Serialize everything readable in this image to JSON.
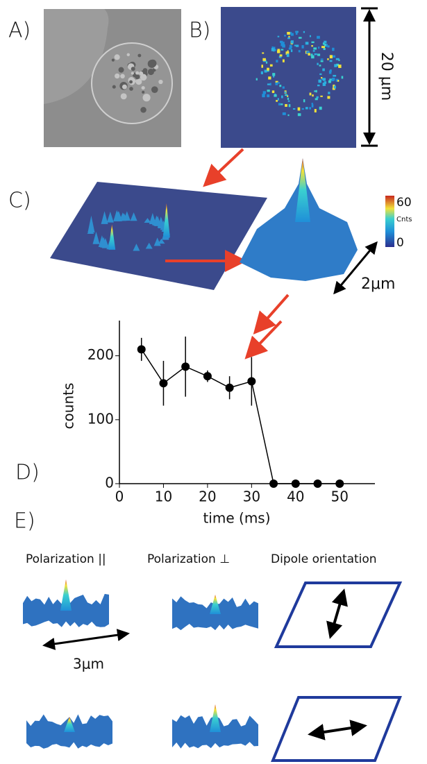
{
  "panel_labels": [
    "A)",
    "B)",
    "C)",
    "D)",
    "E)"
  ],
  "scale_bars": {
    "b": "20 μm",
    "c": "2μm",
    "e": "3μm"
  },
  "colorbar": {
    "max": 60,
    "min": 0,
    "unit": "Cnts"
  },
  "columns": [
    "Polarization ||",
    "Polarization ⊥",
    "Dipole orientation"
  ],
  "chart_data": {
    "type": "line",
    "xlabel": "time (ms)",
    "ylabel": "counts",
    "x": [
      5,
      10,
      15,
      20,
      25,
      30,
      35,
      40,
      45,
      50
    ],
    "values": [
      210,
      157,
      183,
      168,
      150,
      160,
      0,
      0,
      0,
      0
    ],
    "errors": [
      18,
      35,
      47,
      9,
      18,
      38,
      null,
      null,
      null,
      null
    ],
    "color": "#000000",
    "xlim": [
      0,
      58
    ],
    "xticks": [
      0,
      10,
      20,
      30,
      40,
      50
    ],
    "ylim": [
      0,
      255
    ],
    "yticks": [
      0,
      100,
      200
    ]
  }
}
